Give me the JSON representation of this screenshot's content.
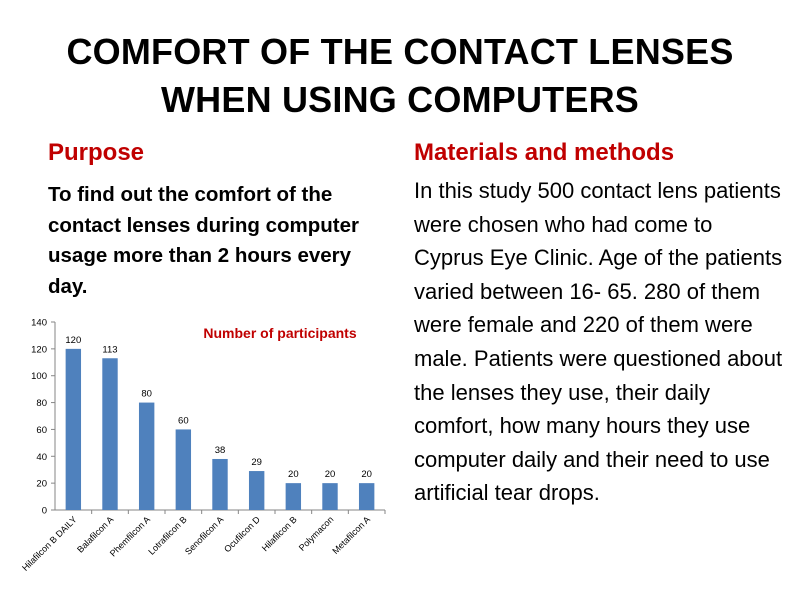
{
  "slide": {
    "title_line1": "COMFORT OF THE CONTACT LENSES",
    "title_line2": "WHEN USING COMPUTERS"
  },
  "purpose": {
    "heading": "Purpose",
    "text": "To find out the comfort of the contact lenses during computer usage more than 2 hours every day."
  },
  "methods": {
    "heading": "Materials and methods",
    "text": "In this study 500 contact lens patients were chosen  who had come to Cyprus Eye Clinic. Age of the patients varied between 16- 65. 280 of them were female and 220 of  them were male. Patients were questioned about the lenses they use, their daily comfort, how many hours they use computer daily and their need to use artificial tear drops."
  },
  "colors": {
    "accent": "#c00000",
    "bar": "#4f81bd"
  },
  "chart_data": {
    "type": "bar",
    "title": "Number of participants",
    "categories": [
      "Hilafilcon B DAILY",
      "Balafilcon A",
      "Phemfilcon A",
      "Lotrafilcon B",
      "Senofilcon A",
      "Ocufilcon D",
      "Hilafilcon B",
      "Polymacon",
      "Metafilcon  A"
    ],
    "values": [
      120,
      113,
      80,
      60,
      38,
      29,
      20,
      20,
      20
    ],
    "ylim": [
      0,
      140
    ],
    "yticks": [
      0,
      20,
      40,
      60,
      80,
      100,
      120,
      140
    ],
    "xlabel": "",
    "ylabel": "",
    "grid": false,
    "legend": "none"
  }
}
